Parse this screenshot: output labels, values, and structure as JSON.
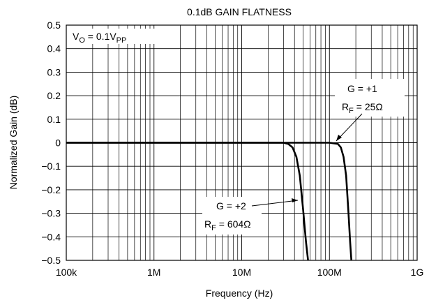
{
  "chart_data": {
    "type": "line",
    "title": "0.1dB GAIN FLATNESS",
    "xlabel": "Frequency (Hz)",
    "ylabel": "Normalized Gain (dB)",
    "x_scale": "log",
    "xlim": [
      100000,
      1000000000
    ],
    "ylim": [
      -0.5,
      0.5
    ],
    "x_ticks": [
      100000,
      1000000,
      10000000,
      100000000,
      1000000000
    ],
    "x_tick_labels": [
      "100k",
      "1M",
      "10M",
      "100M",
      "1G"
    ],
    "y_ticks": [
      0.5,
      0.4,
      0.3,
      0.2,
      0.1,
      0,
      -0.1,
      -0.2,
      -0.3,
      -0.4,
      -0.5
    ],
    "y_tick_labels": [
      "0.5",
      "0.4",
      "0.3",
      "0.2",
      "0.1",
      "0",
      "−0.1",
      "−0.2",
      "−0.3",
      "−0.4",
      "−0.5"
    ],
    "grid": true,
    "condition_label": {
      "main": "V",
      "sub1": "O",
      "mid": " = 0.1V",
      "sub2": "PP"
    },
    "series": [
      {
        "x": [
          100000,
          1000000,
          10000000,
          30000000,
          34000000,
          38000000,
          42000000,
          46000000,
          50000000,
          54000000,
          57000000
        ],
        "y": [
          0,
          0,
          0,
          0,
          -0.005,
          -0.02,
          -0.06,
          -0.14,
          -0.28,
          -0.42,
          -0.5
        ]
      },
      {
        "x": [
          100000,
          1000000,
          10000000,
          100000000,
          125000000,
          135000000,
          145000000,
          155000000,
          165000000,
          172000000,
          178000000
        ],
        "y": [
          0,
          0,
          0,
          0,
          -0.005,
          -0.02,
          -0.06,
          -0.14,
          -0.3,
          -0.42,
          -0.5
        ]
      }
    ],
    "annotations": [
      {
        "line1": "G = +1",
        "r_main": "R",
        "r_sub": "F",
        "r_rest": " = 25Ω"
      },
      {
        "line1": "G = +2",
        "r_main": "R",
        "r_sub": "F",
        "r_rest": " = 604Ω"
      }
    ]
  }
}
